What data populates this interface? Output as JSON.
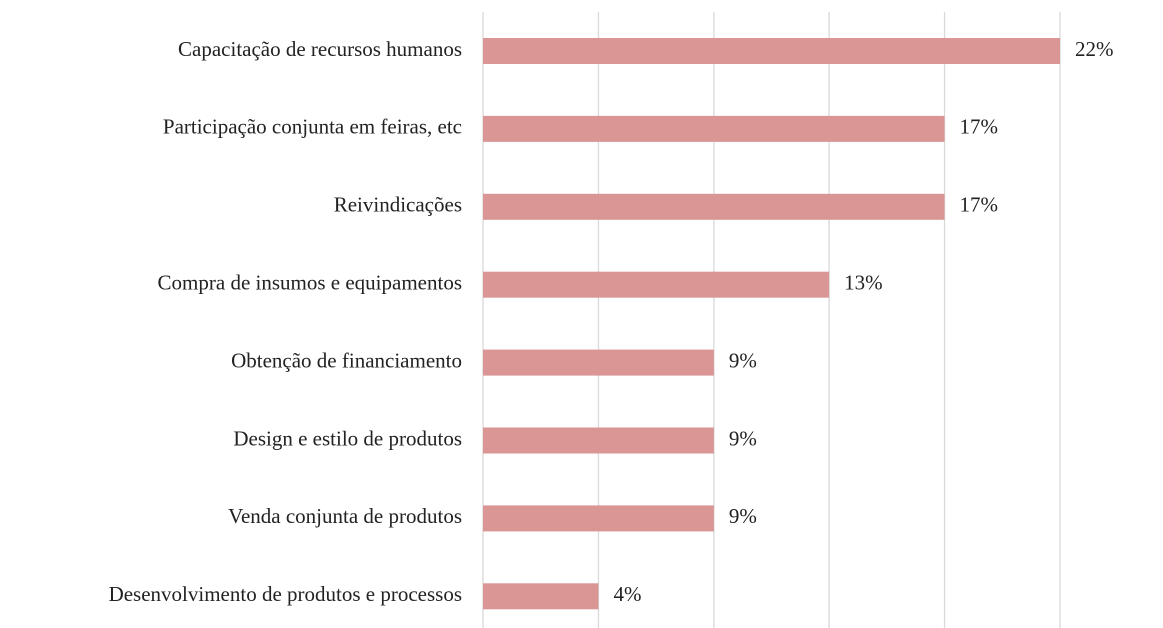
{
  "chart_data": {
    "type": "barh",
    "categories": [
      "Capacitação de recursos humanos",
      "Participação conjunta em feiras, etc",
      "Reivindicações",
      "Compra de insumos e equipamentos",
      "Obtenção de financiamento",
      "Design e estilo de produtos",
      "Venda conjunta de produtos",
      "Desenvolvimento de produtos e processos"
    ],
    "values": [
      21.74,
      17.39,
      17.39,
      13.04,
      8.7,
      8.7,
      8.7,
      4.35
    ],
    "value_labels": [
      "22%",
      "17%",
      "17%",
      "13%",
      "9%",
      "9%",
      "9%",
      "4%"
    ],
    "color": "#d99694",
    "xlim": [
      0,
      21.74
    ],
    "xticks": [
      0,
      4.35,
      8.7,
      13.04,
      17.39,
      21.74
    ],
    "grid": true
  }
}
